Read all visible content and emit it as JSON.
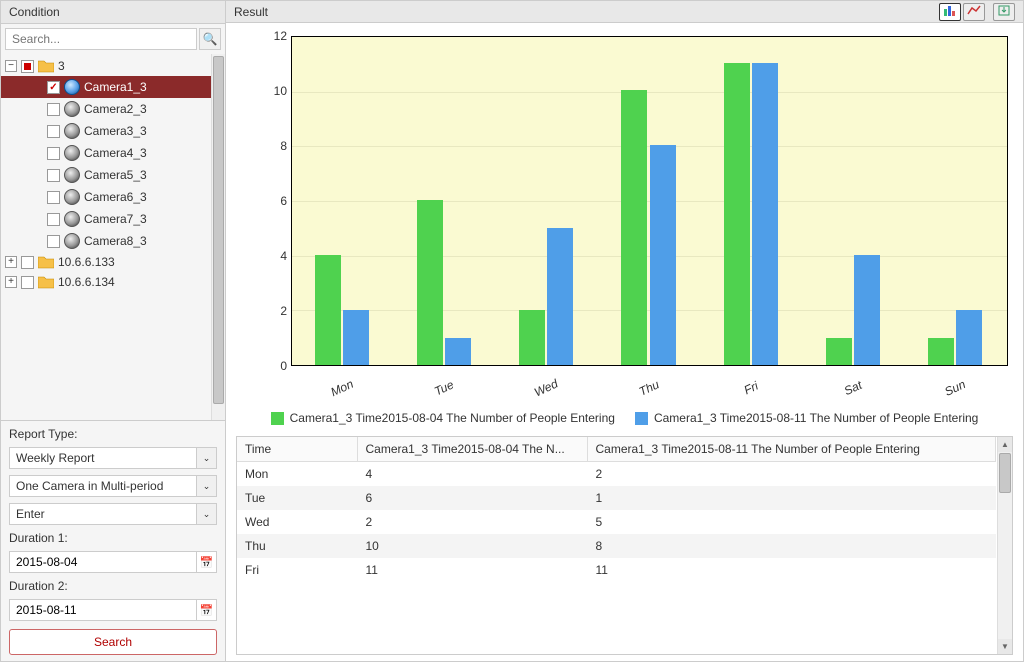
{
  "sidebar": {
    "title": "Condition",
    "search_placeholder": "Search...",
    "tree_root": {
      "label": "3"
    },
    "cameras": [
      {
        "label": "Camera1_3",
        "checked": true,
        "selected": true,
        "active": true
      },
      {
        "label": "Camera2_3",
        "checked": false,
        "selected": false,
        "active": false
      },
      {
        "label": "Camera3_3",
        "checked": false,
        "selected": false,
        "active": false
      },
      {
        "label": "Camera4_3",
        "checked": false,
        "selected": false,
        "active": false
      },
      {
        "label": "Camera5_3",
        "checked": false,
        "selected": false,
        "active": false
      },
      {
        "label": "Camera6_3",
        "checked": false,
        "selected": false,
        "active": false
      },
      {
        "label": "Camera7_3",
        "checked": false,
        "selected": false,
        "active": false
      },
      {
        "label": "Camera8_3",
        "checked": false,
        "selected": false,
        "active": false
      }
    ],
    "hosts": [
      {
        "label": "10.6.6.133"
      },
      {
        "label": "10.6.6.134"
      }
    ],
    "report_type_label": "Report Type:",
    "report_type_value": "Weekly Report",
    "scope_value": "One Camera in Multi-period",
    "direction_value": "Enter",
    "duration1_label": "Duration 1:",
    "duration1_value": "2015-08-04",
    "duration2_label": "Duration 2:",
    "duration2_value": "2015-08-11",
    "search_button": "Search"
  },
  "result": {
    "title": "Result",
    "chart": {
      "type": "bar",
      "y_title": "The Number of People Entering",
      "y_min": 0,
      "y_max": 12,
      "y_step": 2,
      "plot_bg": "#fafad2",
      "grid_color": "#e8e8c0",
      "categories": [
        "Mon",
        "Tue",
        "Wed",
        "Thu",
        "Fri",
        "Sat",
        "Sun"
      ],
      "series": [
        {
          "name": "Camera1_3 Time2015-08-04 The Number of People Entering",
          "color": "#4fd24f",
          "values": [
            4,
            6,
            2,
            10,
            11,
            1,
            1
          ]
        },
        {
          "name": "Camera1_3 Time2015-08-11 The Number of People Entering",
          "color": "#4f9ee8",
          "values": [
            2,
            1,
            5,
            8,
            11,
            4,
            2
          ]
        }
      ],
      "bar_group_width": 0.55,
      "title_fontsize": 14,
      "tick_fontsize": 12
    },
    "table": {
      "columns": [
        "Time",
        "Camera1_3 Time2015-08-04 The N...",
        "Camera1_3 Time2015-08-11 The Number of People Entering"
      ],
      "rows": [
        [
          "Mon",
          "4",
          "2"
        ],
        [
          "Tue",
          "6",
          "1"
        ],
        [
          "Wed",
          "2",
          "5"
        ],
        [
          "Thu",
          "10",
          "8"
        ],
        [
          "Fri",
          "11",
          "11"
        ]
      ]
    }
  }
}
